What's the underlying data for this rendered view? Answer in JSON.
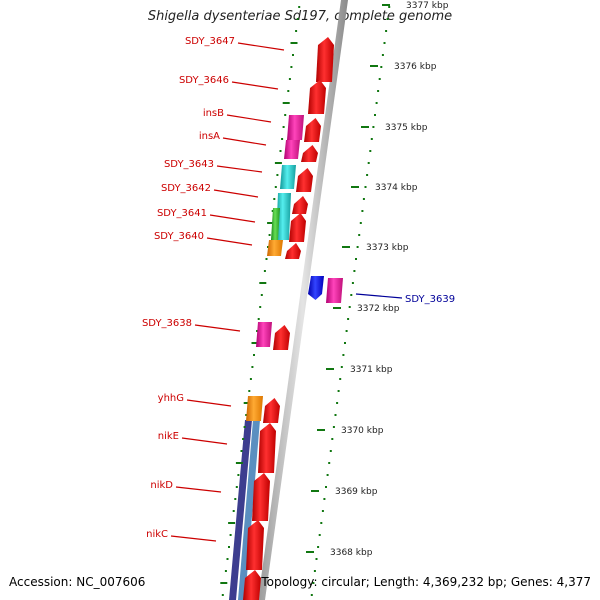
{
  "title": "Shigella dysenteriae Sd197, complete genome",
  "accession_text": "Accession: NC_007606",
  "topology_text": "Topology: circular; Length: 4,369,232 bp; Genes: 4,377",
  "colors": {
    "red_gene": "#ee0000",
    "magenta_gene": "#ee1199",
    "cyan_gene": "#22cccc",
    "green_gene": "#33bb33",
    "orange_gene": "#ff8800",
    "blue_gene": "#1111dd",
    "navy_band": "#3d3d8f",
    "steel_band": "#5a8fc0",
    "scale_tick": "#117711",
    "label_red": "#cc0000",
    "label_blue": "#000099"
  },
  "scale_labels": [
    "3377 kbp",
    "3376 kbp",
    "3375 kbp",
    "3374 kbp",
    "3373 kbp",
    "3372 kbp",
    "3371 kbp",
    "3370 kbp",
    "3369 kbp",
    "3368 kbp"
  ],
  "gene_labels": [
    {
      "name": "SDY_3647",
      "color": "red"
    },
    {
      "name": "SDY_3646",
      "color": "red"
    },
    {
      "name": "insB",
      "color": "red"
    },
    {
      "name": "insA",
      "color": "red"
    },
    {
      "name": "SDY_3643",
      "color": "red"
    },
    {
      "name": "SDY_3642",
      "color": "red"
    },
    {
      "name": "SDY_3641",
      "color": "red"
    },
    {
      "name": "SDY_3640",
      "color": "red"
    },
    {
      "name": "SDY_3639",
      "color": "blue"
    },
    {
      "name": "SDY_3638",
      "color": "red"
    },
    {
      "name": "yhhG",
      "color": "red"
    },
    {
      "name": "nikE",
      "color": "red"
    },
    {
      "name": "nikD",
      "color": "red"
    },
    {
      "name": "nikC",
      "color": "red"
    }
  ]
}
